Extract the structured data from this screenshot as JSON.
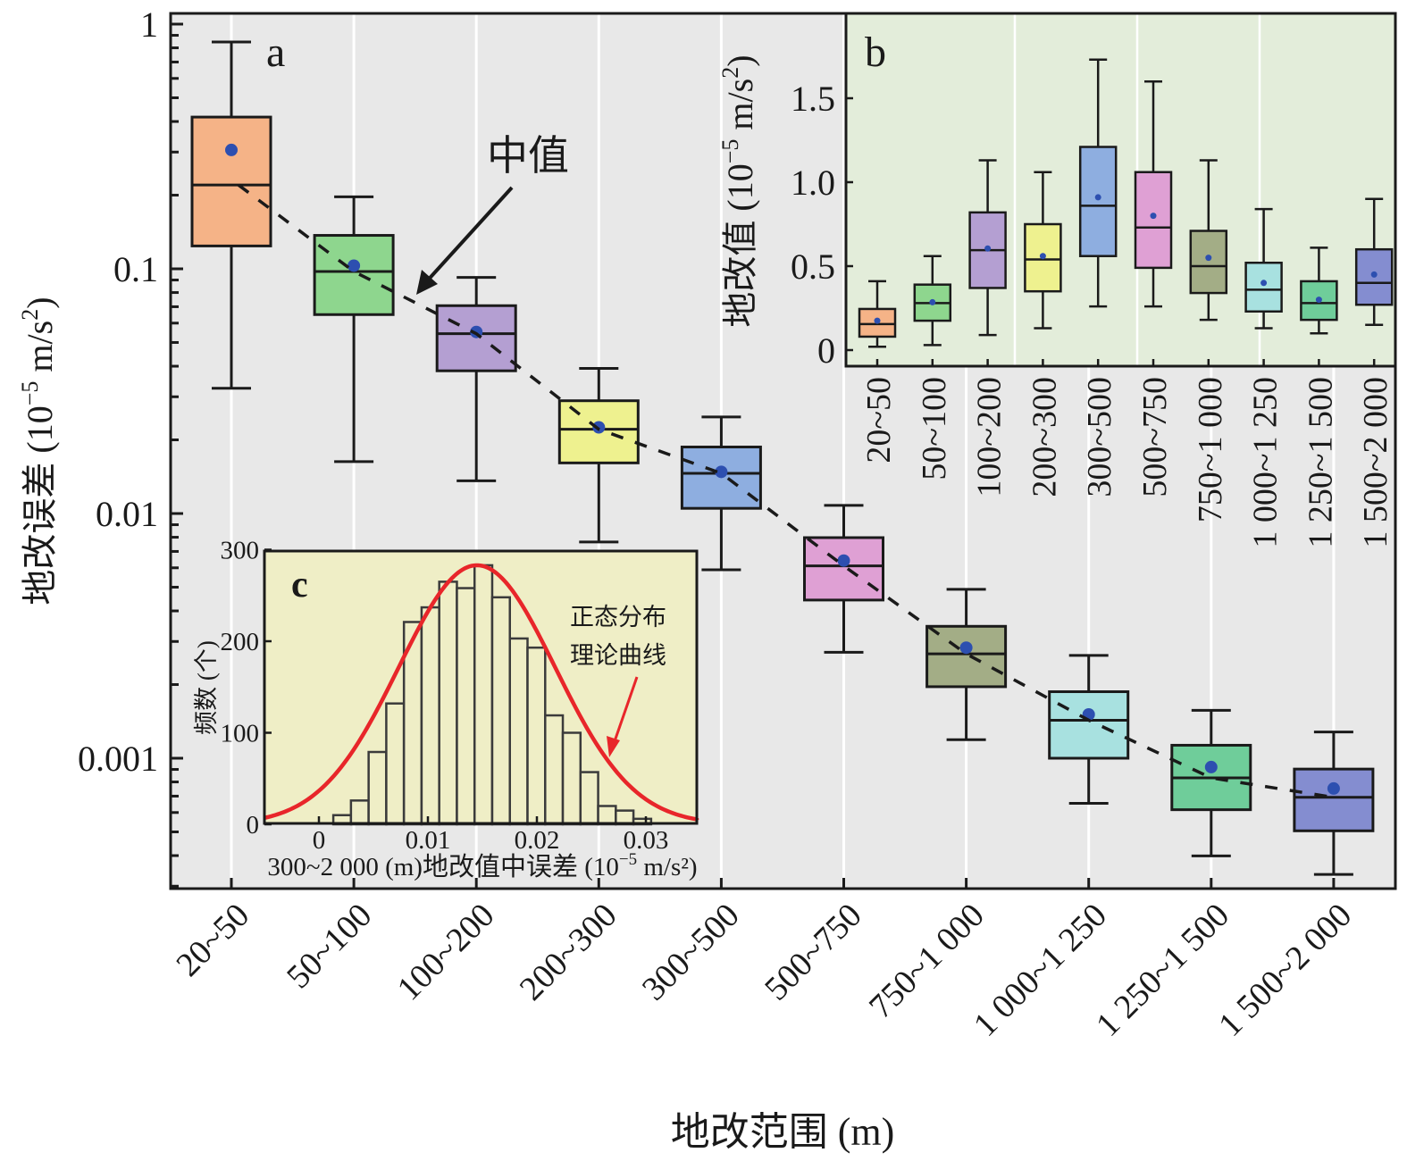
{
  "chart_data": [
    {
      "id": "a",
      "type": "box",
      "panel_label": "a",
      "title": "",
      "xlabel": "地改范围 (m)",
      "ylabel": "地改误差 (10⁻⁵ m/s²)",
      "ylabel_parts": {
        "main": "地改误差 (10",
        "sup1": "−5",
        "mid": " m/s",
        "sup2": "2",
        "end": ")"
      },
      "yscale": "log",
      "ylim": [
        0.00029,
        1.1
      ],
      "yticks": [
        {
          "value": 1,
          "label": "1"
        },
        {
          "value": 0.1,
          "label": "0.1"
        },
        {
          "value": 0.01,
          "label": "0.01"
        },
        {
          "value": 0.001,
          "label": "0.001"
        }
      ],
      "grid": "vertical",
      "background": "#e8e8e8",
      "annotation": {
        "text": "中值",
        "points_to": "median trend line"
      },
      "median_line": "dashed",
      "categories": [
        "20~50",
        "50~100",
        "100~200",
        "200~300",
        "300~500",
        "500~750",
        "750~1 000",
        "1 000~1 250",
        "1 250~1 500",
        "1 500~2 000"
      ],
      "colors": [
        "#f5b387",
        "#8ed68e",
        "#b49fd2",
        "#eef18f",
        "#8eaee0",
        "#dfa0d4",
        "#a3ad86",
        "#a8e1e0",
        "#6fcd9a",
        "#848dd0"
      ],
      "mean_color": "#2d4fb0",
      "boxes": [
        {
          "whisker_high": 0.845,
          "q3": 0.417,
          "median": 0.22,
          "mean": 0.306,
          "q1": 0.124,
          "whisker_low": 0.0325
        },
        {
          "whisker_high": 0.197,
          "q3": 0.137,
          "median": 0.0975,
          "mean": 0.103,
          "q1": 0.065,
          "whisker_low": 0.0163
        },
        {
          "whisker_high": 0.0922,
          "q3": 0.0707,
          "median": 0.0543,
          "mean": 0.0552,
          "q1": 0.0383,
          "whisker_low": 0.0136
        },
        {
          "whisker_high": 0.0392,
          "q3": 0.0289,
          "median": 0.0221,
          "mean": 0.0225,
          "q1": 0.0161,
          "whisker_low": 0.00765
        },
        {
          "whisker_high": 0.0248,
          "q3": 0.0187,
          "median": 0.0146,
          "mean": 0.0148,
          "q1": 0.0105,
          "whisker_low": 0.00589
        },
        {
          "whisker_high": 0.0108,
          "q3": 0.00797,
          "median": 0.00611,
          "mean": 0.00642,
          "q1": 0.00443,
          "whisker_low": 0.00271
        },
        {
          "whisker_high": 0.0049,
          "q3": 0.00346,
          "median": 0.00267,
          "mean": 0.00283,
          "q1": 0.00196,
          "whisker_low": 0.00119
        },
        {
          "whisker_high": 0.00263,
          "q3": 0.00187,
          "median": 0.00143,
          "mean": 0.00151,
          "q1": 0.001,
          "whisker_low": 0.000654
        },
        {
          "whisker_high": 0.00157,
          "q3": 0.00113,
          "median": 0.000831,
          "mean": 0.00092,
          "q1": 0.000616,
          "whisker_low": 0.000399
        },
        {
          "whisker_high": 0.00128,
          "q3": 0.000903,
          "median": 0.000692,
          "mean": 0.000752,
          "q1": 0.000505,
          "whisker_low": 0.000335
        }
      ]
    },
    {
      "id": "b",
      "type": "box",
      "panel_label": "b",
      "title": "",
      "xlabel": "",
      "ylabel": "地改值 (10⁻⁵ m/s²)",
      "ylabel_parts": {
        "main": "地改值 (10",
        "sup1": "−5",
        "mid": " m/s",
        "sup2": "2",
        "end": ")"
      },
      "yscale": "linear",
      "ylim": [
        -0.1,
        2.0
      ],
      "yticks": [
        {
          "value": 0,
          "label": "0"
        },
        {
          "value": 0.5,
          "label": "0.5"
        },
        {
          "value": 1.0,
          "label": "1.0"
        },
        {
          "value": 1.5,
          "label": "1.5"
        }
      ],
      "grid": "vertical",
      "background": "#e3edda",
      "categories": [
        "20~50",
        "50~100",
        "100~200",
        "200~300",
        "300~500",
        "500~750",
        "750~1 000",
        "1 000~1 250",
        "1 250~1 500",
        "1 500~2 000"
      ],
      "boxes": [
        {
          "whisker_high": 0.41,
          "q3": 0.245,
          "median": 0.155,
          "mean": 0.175,
          "q1": 0.08,
          "whisker_low": 0.02
        },
        {
          "whisker_high": 0.56,
          "q3": 0.39,
          "median": 0.28,
          "mean": 0.285,
          "q1": 0.175,
          "whisker_low": 0.03
        },
        {
          "whisker_high": 1.13,
          "q3": 0.82,
          "median": 0.595,
          "mean": 0.605,
          "q1": 0.37,
          "whisker_low": 0.09
        },
        {
          "whisker_high": 1.06,
          "q3": 0.75,
          "median": 0.54,
          "mean": 0.56,
          "q1": 0.35,
          "whisker_low": 0.13
        },
        {
          "whisker_high": 1.73,
          "q3": 1.21,
          "median": 0.86,
          "mean": 0.91,
          "q1": 0.56,
          "whisker_low": 0.26
        },
        {
          "whisker_high": 1.6,
          "q3": 1.06,
          "median": 0.73,
          "mean": 0.8,
          "q1": 0.49,
          "whisker_low": 0.26
        },
        {
          "whisker_high": 1.13,
          "q3": 0.71,
          "median": 0.5,
          "mean": 0.55,
          "q1": 0.34,
          "whisker_low": 0.18
        },
        {
          "whisker_high": 0.84,
          "q3": 0.52,
          "median": 0.36,
          "mean": 0.4,
          "q1": 0.23,
          "whisker_low": 0.13
        },
        {
          "whisker_high": 0.61,
          "q3": 0.41,
          "median": 0.28,
          "mean": 0.3,
          "q1": 0.18,
          "whisker_low": 0.1
        },
        {
          "whisker_high": 0.9,
          "q3": 0.6,
          "median": 0.4,
          "mean": 0.45,
          "q1": 0.27,
          "whisker_low": 0.15
        }
      ]
    },
    {
      "id": "c",
      "type": "bar",
      "subtype": "histogram",
      "panel_label": "c",
      "title": "",
      "xlabel": "300~2 000 (m)地改值中误差 (10⁻⁵ m/s²)",
      "xlabel_parts": {
        "main": "300~2 000 (m)地改值中误差 (10",
        "sup1": "−5",
        "end": " m/s²)"
      },
      "ylabel": "频数 (个)",
      "xlim": [
        -0.005,
        0.035
      ],
      "ylim": [
        0,
        300
      ],
      "xticks": [
        {
          "value": 0,
          "label": "0"
        },
        {
          "value": 0.01,
          "label": "0.01"
        },
        {
          "value": 0.02,
          "label": "0.02"
        },
        {
          "value": 0.03,
          "label": "0.03"
        }
      ],
      "yticks": [
        {
          "value": 0,
          "label": "0"
        },
        {
          "value": 100,
          "label": "100"
        },
        {
          "value": 200,
          "label": "200"
        },
        {
          "value": 300,
          "label": "300"
        }
      ],
      "background": "#efeec6",
      "bin_width": 0.00162,
      "bin_start": 0.00132,
      "counts": [
        10,
        26,
        79,
        132,
        221,
        237,
        265,
        258,
        283,
        248,
        203,
        193,
        119,
        100,
        57,
        20,
        15,
        6
      ],
      "normal_curve": {
        "label": "正态分布理论曲线",
        "label_lines": [
          "正态分布",
          "理论曲线"
        ],
        "mean": 0.0145,
        "sigma": 0.00717,
        "peak": 283,
        "color": "#e8262a"
      }
    }
  ]
}
